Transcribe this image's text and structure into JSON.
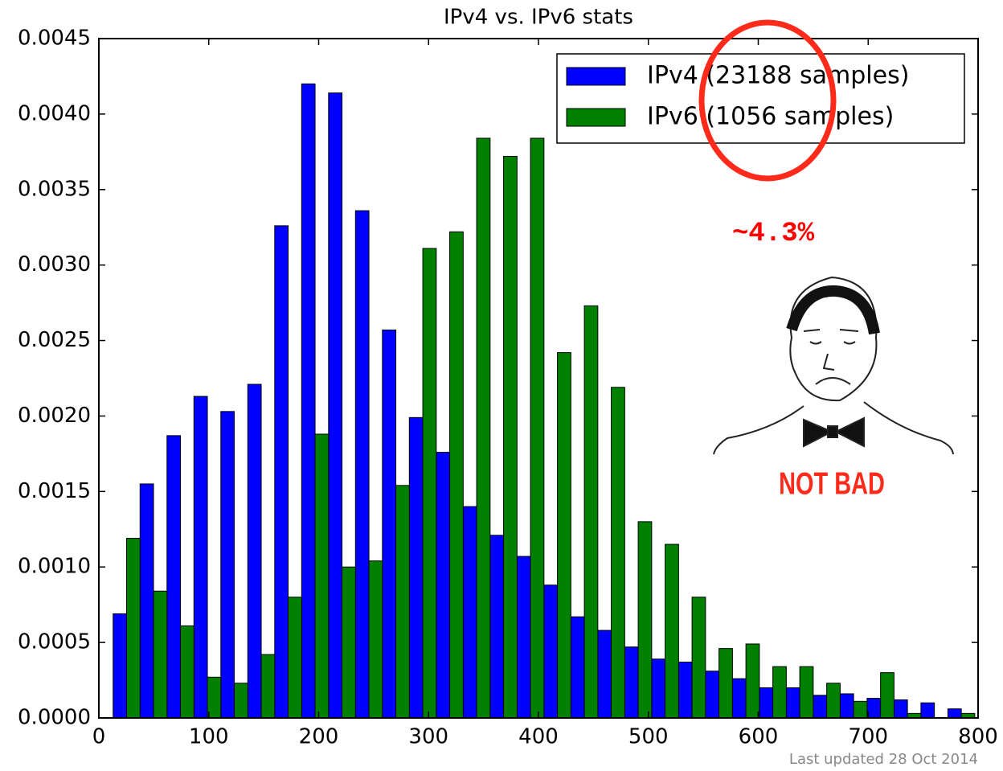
{
  "chart_data": {
    "type": "histogram",
    "title": "IPv4 vs. IPv6 stats",
    "bins": [
      13,
      37.5,
      62,
      86.5,
      111,
      135.5,
      160,
      184.5,
      209,
      233.5,
      258,
      282.5,
      307,
      331.5,
      356,
      380.5,
      405,
      429.5,
      454,
      478.5,
      503,
      527.5,
      552,
      576.5,
      601,
      625.5,
      650,
      674.5,
      699,
      723.5,
      748,
      772.5,
      797
    ],
    "series": [
      {
        "name": "IPv4 (23188 samples)",
        "color": "#0000ff",
        "values": [
          0.00069,
          0.00155,
          0.00187,
          0.00213,
          0.00203,
          0.00221,
          0.00326,
          0.0042,
          0.00414,
          0.00336,
          0.00257,
          0.00199,
          0.00176,
          0.0014,
          0.00121,
          0.00107,
          0.00088,
          0.00067,
          0.00058,
          0.00047,
          0.00039,
          0.00037,
          0.00031,
          0.00026,
          0.0002,
          0.0002,
          0.00015,
          0.00016,
          0.00013,
          0.00012,
          0.0001,
          6e-05
        ]
      },
      {
        "name": "IPv6 (1056 samples)",
        "color": "#008000",
        "values": [
          0.00119,
          0.00084,
          0.00061,
          0.00027,
          0.00023,
          0.00042,
          0.0008,
          0.00188,
          0.001,
          0.00104,
          0.00154,
          0.00311,
          0.00322,
          0.00384,
          0.00372,
          0.00384,
          0.00242,
          0.00273,
          0.00219,
          0.0013,
          0.00115,
          0.0008,
          0.00046,
          0.00049,
          0.00034,
          0.00034,
          0.00023,
          0.00011,
          0.0003,
          3e-05,
          0,
          3e-05
        ]
      }
    ],
    "xlim": [
      0,
      800
    ],
    "xticks": [
      0,
      100,
      200,
      300,
      400,
      500,
      600,
      700,
      800
    ],
    "ylim": [
      0,
      0.0045
    ],
    "yticks": [
      {
        "value": 0,
        "label": "0.0000"
      },
      {
        "value": 0.0005,
        "label": "0.0005"
      },
      {
        "value": 0.001,
        "label": "0.0010"
      },
      {
        "value": 0.0015,
        "label": "0.0015"
      },
      {
        "value": 0.002,
        "label": "0.0020"
      },
      {
        "value": 0.0025,
        "label": "0.0025"
      },
      {
        "value": 0.003,
        "label": "0.0030"
      },
      {
        "value": 0.0035,
        "label": "0.0035"
      },
      {
        "value": 0.004,
        "label": "0.0040"
      },
      {
        "value": 0.0045,
        "label": "0.0045"
      }
    ],
    "legend": "upper right",
    "annotations": [
      "~4.3%",
      "NOT BAD",
      "Last updated 28 Oct 2014"
    ]
  }
}
